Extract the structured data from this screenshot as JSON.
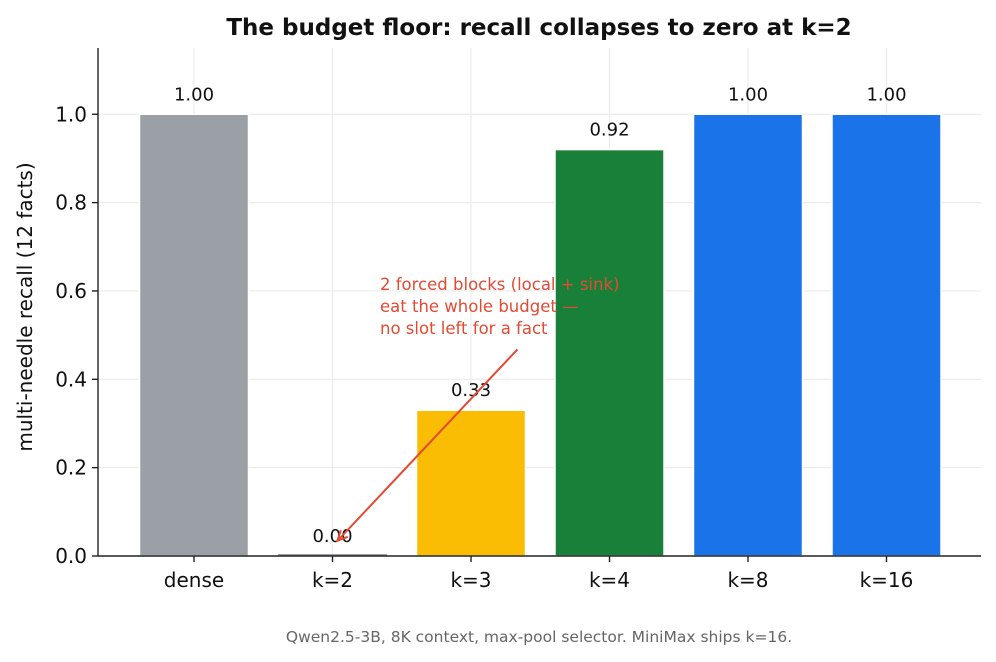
{
  "chart_data": {
    "type": "bar",
    "title": "The budget floor: recall collapses to zero at k=2",
    "ylabel": "multi-needle recall (12 facts)",
    "xlabel": "",
    "categories": [
      "dense",
      "k=2",
      "k=3",
      "k=4",
      "k=8",
      "k=16"
    ],
    "values": [
      1.0,
      0.0,
      0.33,
      0.92,
      1.0,
      1.0
    ],
    "value_labels": [
      "1.00",
      "0.00",
      "0.33",
      "0.92",
      "1.00",
      "1.00"
    ],
    "bar_colors": [
      "#9aa0a6",
      "#9aa0a6",
      "#fbbc04",
      "#188038",
      "#1a73e8",
      "#1a73e8"
    ],
    "ylim": [
      0,
      1.15
    ],
    "yticks": [
      0.0,
      0.2,
      0.4,
      0.6,
      0.8,
      1.0
    ],
    "ytick_labels": [
      "0.0",
      "0.2",
      "0.4",
      "0.6",
      "0.8",
      "1.0"
    ],
    "grid": true,
    "annotation": {
      "lines": [
        "2 forced blocks (local + sink)",
        "eat the whole budget —",
        "no slot left for a fact"
      ],
      "color": "#e24a33",
      "points_to_category": "k=2",
      "points_to_value": 0.03,
      "text_anchor_category_index": 2.35,
      "text_anchor_value": 0.47
    },
    "caption": "Qwen2.5-3B, 8K context, max-pool selector. MiniMax ships k=16."
  }
}
